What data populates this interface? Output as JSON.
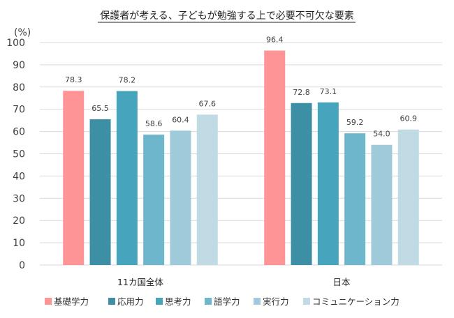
{
  "chart_data": {
    "type": "bar",
    "title": "保護者が考える、子どもが勉強する上で必要不可欠な要素",
    "ylabel": "(%)",
    "xlabel": "",
    "ylim": [
      0,
      100
    ],
    "yticks": [
      0,
      10,
      20,
      30,
      40,
      50,
      60,
      70,
      80,
      90,
      100
    ],
    "grid": true,
    "legend_position": "bottom",
    "categories": [
      "11カ国全体",
      "日本"
    ],
    "series": [
      {
        "name": "基礎学力",
        "color": "#ff9496",
        "values": [
          78.3,
          96.4
        ]
      },
      {
        "name": "応用力",
        "color": "#3d8fa6",
        "values": [
          65.5,
          72.8
        ]
      },
      {
        "name": "思考力",
        "color": "#46a5bd",
        "values": [
          78.2,
          73.1
        ]
      },
      {
        "name": "語学力",
        "color": "#6eb6cc",
        "values": [
          58.6,
          59.2
        ]
      },
      {
        "name": "実行力",
        "color": "#9ecad9",
        "values": [
          60.4,
          54.0
        ]
      },
      {
        "name": "コミュニケーション力",
        "color": "#c0dbe4",
        "values": [
          67.6,
          60.9
        ]
      }
    ]
  }
}
